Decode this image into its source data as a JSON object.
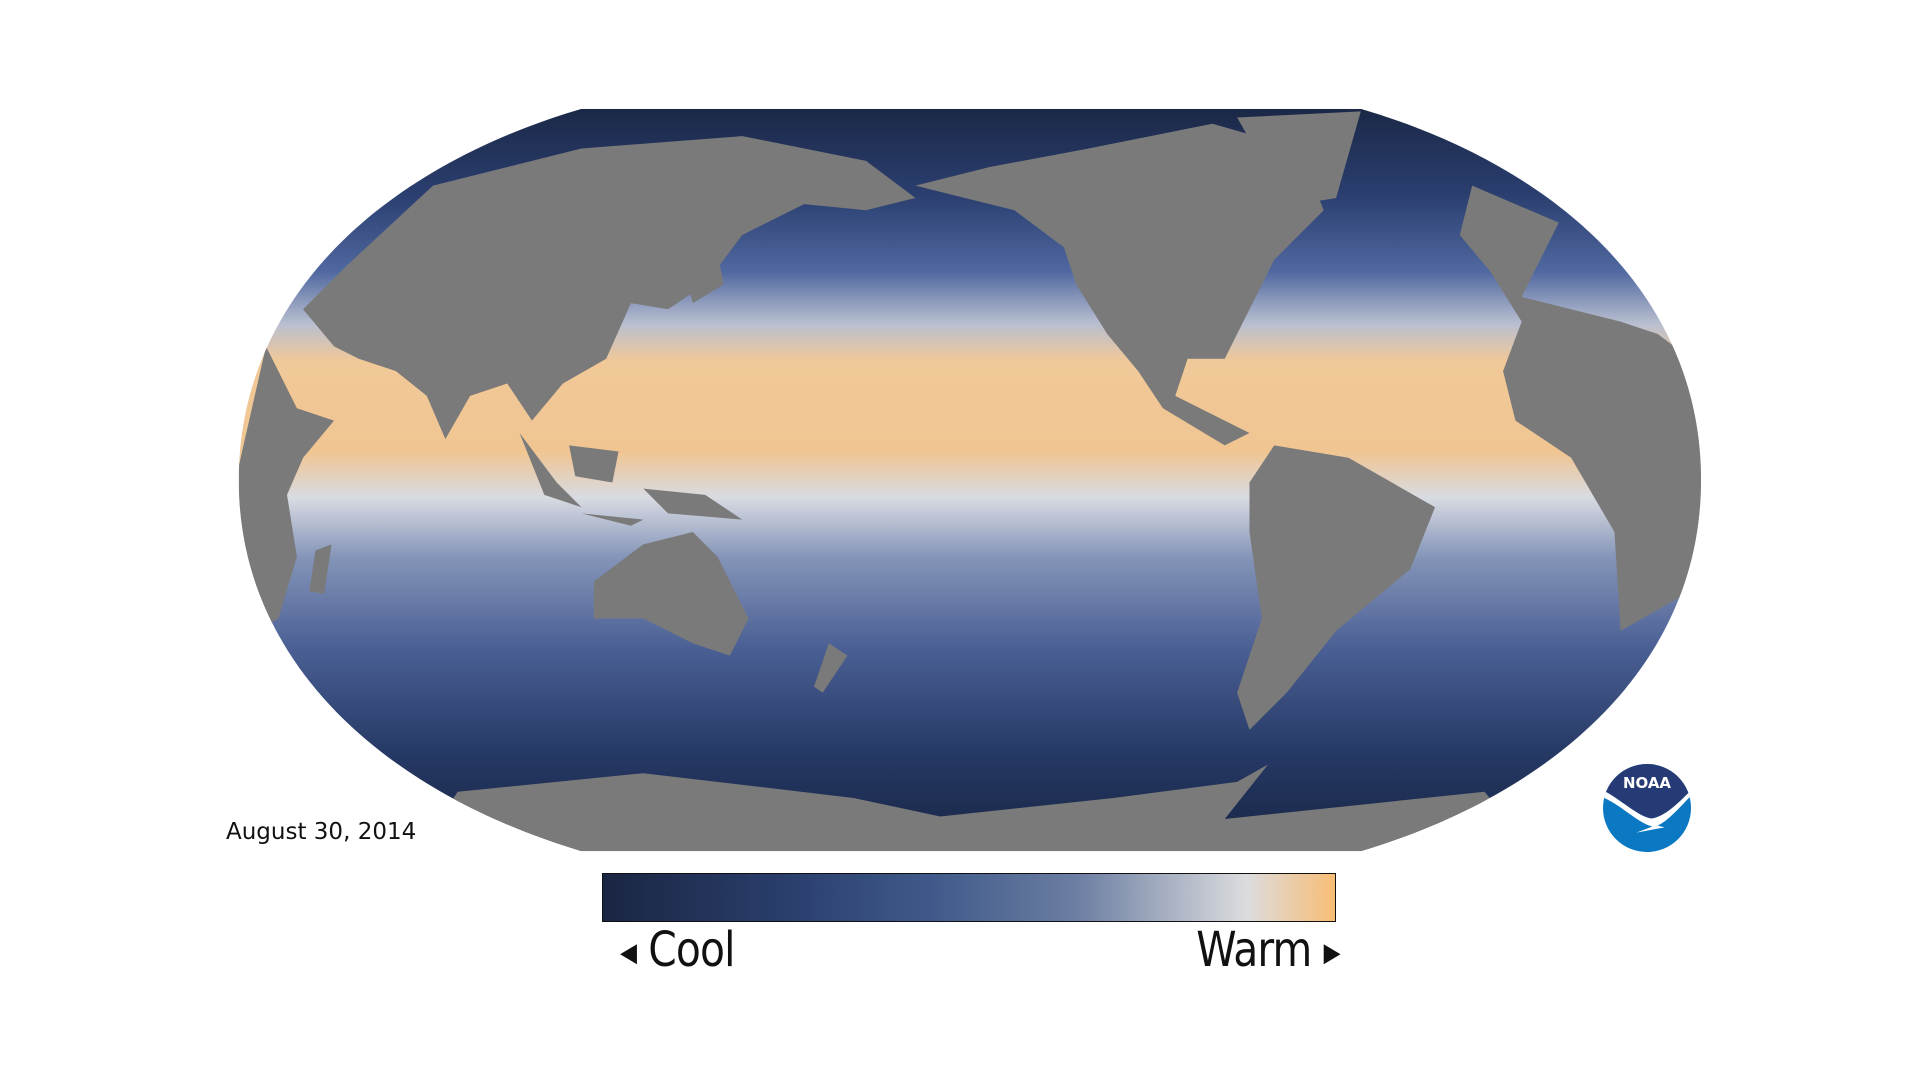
{
  "date": "August 30, 2014",
  "colorbar": {
    "low_label": "Cool",
    "high_label": "Warm",
    "low_arrow_icon": "triangle-left-icon",
    "high_arrow_icon": "triangle-right-icon",
    "colors": [
      "#1a2542",
      "#2a3e6c",
      "#3f5a8a",
      "#6d7fa3",
      "#dcdcde",
      "#f8bd75"
    ]
  },
  "logo": {
    "text": "NOAA",
    "colors": {
      "top": "#263a75",
      "bottom": "#0a78c2"
    }
  },
  "map": {
    "land_color": "#7a7a7a",
    "projection": "Robinson, Pacific-centered"
  }
}
